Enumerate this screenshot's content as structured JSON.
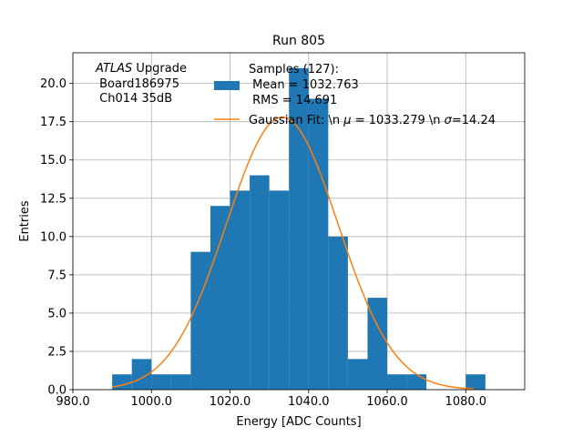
{
  "chart_data": {
    "type": "bar",
    "title": "Run 805",
    "xlabel": "Energy [ADC Counts]",
    "ylabel": "Entries",
    "xlim": [
      980,
      1095
    ],
    "ylim": [
      0,
      22
    ],
    "grid": true,
    "xticks": [
      980.0,
      1000.0,
      1020.0,
      1040.0,
      1060.0,
      1080.0
    ],
    "xtick_labels": [
      "980.0",
      "1000.0",
      "1020.0",
      "1040.0",
      "1060.0",
      "1080.0"
    ],
    "yticks": [
      0,
      2.5,
      5,
      7.5,
      10,
      12.5,
      15,
      17.5,
      20
    ],
    "ytick_labels": [
      "0.0",
      "2.5",
      "5.0",
      "7.5",
      "10.0",
      "12.5",
      "15.0",
      "17.5",
      "20.0"
    ],
    "annotation": {
      "italic": "ATLAS",
      "rest": " Upgrade",
      "line2": " Board186975",
      "line3": " Ch014 35dB"
    },
    "histogram": {
      "name_lines": [
        "Samples (127):",
        " Mean = 1032.763",
        " RMS = 14.691"
      ],
      "color": "#1f77b4",
      "bins": [
        {
          "x0": 990,
          "x1": 995,
          "count": 1
        },
        {
          "x0": 995,
          "x1": 1000,
          "count": 2
        },
        {
          "x0": 1000,
          "x1": 1005,
          "count": 1
        },
        {
          "x0": 1005,
          "x1": 1010,
          "count": 1
        },
        {
          "x0": 1010,
          "x1": 1015,
          "count": 9
        },
        {
          "x0": 1015,
          "x1": 1020,
          "count": 12
        },
        {
          "x0": 1020,
          "x1": 1025,
          "count": 13
        },
        {
          "x0": 1025,
          "x1": 1030,
          "count": 14
        },
        {
          "x0": 1030,
          "x1": 1035,
          "count": 13
        },
        {
          "x0": 1035,
          "x1": 1040,
          "count": 21
        },
        {
          "x0": 1040,
          "x1": 1045,
          "count": 19
        },
        {
          "x0": 1045,
          "x1": 1050,
          "count": 10
        },
        {
          "x0": 1050,
          "x1": 1055,
          "count": 2
        },
        {
          "x0": 1055,
          "x1": 1060,
          "count": 6
        },
        {
          "x0": 1060,
          "x1": 1065,
          "count": 1
        },
        {
          "x0": 1065,
          "x1": 1070,
          "count": 1
        },
        {
          "x0": 1080,
          "x1": 1085,
          "count": 1
        }
      ]
    },
    "fit": {
      "name_prefix": "Gaussian Fit: \\n ",
      "mu_label": " = 1033.279 \\n ",
      "sigma_label": "=14.24",
      "mu": 1033.279,
      "sigma": 14.24,
      "amplitude": 17.8,
      "x_range": [
        990,
        1082
      ],
      "color": "#ff7f0e"
    }
  }
}
